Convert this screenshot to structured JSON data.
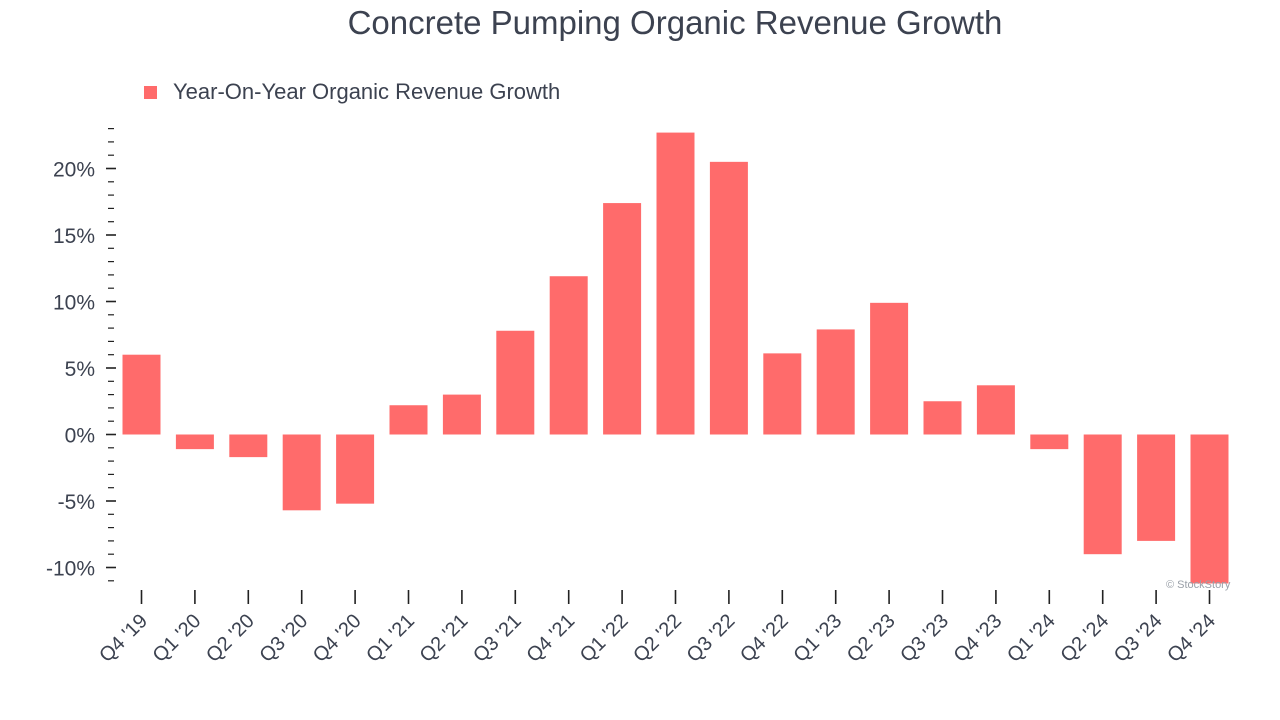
{
  "chart_data": {
    "type": "bar",
    "title": "Concrete Pumping Organic Revenue Growth",
    "legend": "Year-On-Year Organic Revenue Growth",
    "legend_placement": "top-left",
    "categories": [
      "Q4 '19",
      "Q1 '20",
      "Q2 '20",
      "Q3 '20",
      "Q4 '20",
      "Q1 '21",
      "Q2 '21",
      "Q3 '21",
      "Q4 '21",
      "Q1 '22",
      "Q2 '22",
      "Q3 '22",
      "Q4 '22",
      "Q1 '23",
      "Q2 '23",
      "Q3 '23",
      "Q4 '23",
      "Q1 '24",
      "Q2 '24",
      "Q3 '24",
      "Q4 '24"
    ],
    "series": [
      {
        "name": "Year-On-Year Organic Revenue Growth",
        "values": [
          6.0,
          -1.1,
          -1.7,
          -5.7,
          -5.2,
          2.2,
          3.0,
          7.8,
          11.9,
          17.4,
          22.7,
          20.5,
          6.1,
          7.9,
          9.9,
          2.5,
          3.7,
          -1.1,
          -9.0,
          -8.0,
          -11.2
        ]
      }
    ],
    "xlabel": "",
    "ylabel": "",
    "ylim": [
      -11.0,
      23.0
    ],
    "yticks": [
      -10,
      -5,
      0,
      5,
      10,
      15,
      20
    ],
    "ytick_labels": [
      "-10%",
      "-5%",
      "0%",
      "5%",
      "10%",
      "15%",
      "20%"
    ],
    "grid": false,
    "bar_color": "#ff6b6b"
  },
  "watermark": "© StockStory"
}
